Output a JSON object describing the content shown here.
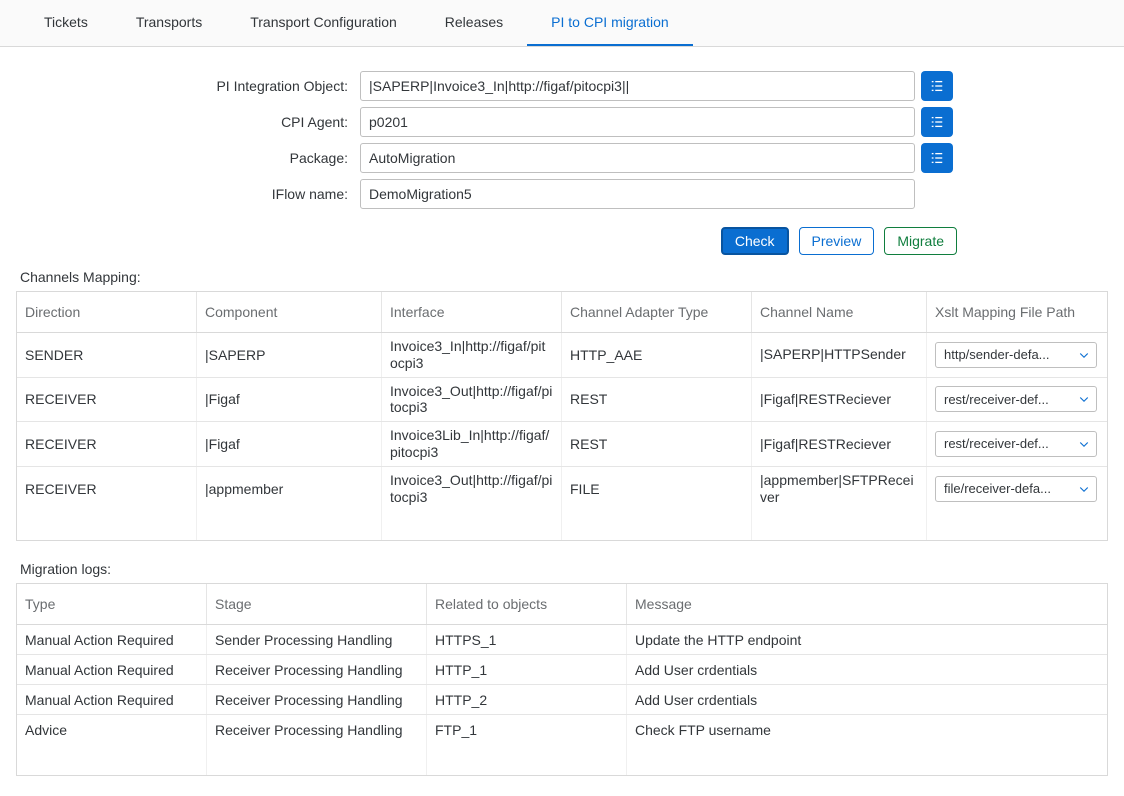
{
  "colors": {
    "primary": "#0a6ed1",
    "primary_border": "#0854a0",
    "green": "#107e3e",
    "text": "#32363a",
    "muted": "#6a6d70",
    "border": "#d9d9d9"
  },
  "tabs": [
    {
      "label": "Tickets",
      "active": false
    },
    {
      "label": "Transports",
      "active": false
    },
    {
      "label": "Transport Configuration",
      "active": false
    },
    {
      "label": "Releases",
      "active": false
    },
    {
      "label": "PI to CPI migration",
      "active": true
    }
  ],
  "form": {
    "pi_object": {
      "label": "PI Integration Object:",
      "value": "|SAPERP|Invoice3_In|http://figaf/pitocpi3||",
      "has_helper": true
    },
    "cpi_agent": {
      "label": "CPI Agent:",
      "value": "p0201",
      "has_helper": true
    },
    "package": {
      "label": "Package:",
      "value": "AutoMigration",
      "has_helper": true
    },
    "iflow": {
      "label": "IFlow name:",
      "value": "DemoMigration5",
      "has_helper": false
    }
  },
  "actions": {
    "check": "Check",
    "preview": "Preview",
    "migrate": "Migrate"
  },
  "channels": {
    "title": "Channels Mapping:",
    "headers": [
      "Direction",
      "Component",
      "Interface",
      "Channel Adapter Type",
      "Channel Name",
      "Xslt Mapping File Path"
    ],
    "rows": [
      {
        "direction": "SENDER",
        "component": "|SAPERP",
        "interface": "Invoice3_In|http://figaf/pitocpi3",
        "adapter": "HTTP_AAE",
        "name": "|SAPERP|HTTPSender",
        "xslt": "http/sender-defa..."
      },
      {
        "direction": "RECEIVER",
        "component": "|Figaf",
        "interface": "Invoice3_Out|http://figaf/pitocpi3",
        "adapter": "REST",
        "name": "|Figaf|RESTReciever",
        "xslt": "rest/receiver-def..."
      },
      {
        "direction": "RECEIVER",
        "component": "|Figaf",
        "interface": "Invoice3Lib_In|http://figaf/pitocpi3",
        "adapter": "REST",
        "name": "|Figaf|RESTReciever",
        "xslt": "rest/receiver-def..."
      },
      {
        "direction": "RECEIVER",
        "component": "|appmember",
        "interface": "Invoice3_Out|http://figaf/pitocpi3",
        "adapter": "FILE",
        "name": "|appmember|SFTPReceiver",
        "xslt": "file/receiver-defa..."
      }
    ]
  },
  "logs": {
    "title": "Migration logs:",
    "headers": [
      "Type",
      "Stage",
      "Related to objects",
      "Message"
    ],
    "rows": [
      {
        "type": "Manual Action Required",
        "stage": "Sender Processing Handling",
        "object": "HTTPS_1",
        "message": "Update the HTTP endpoint"
      },
      {
        "type": "Manual Action Required",
        "stage": "Receiver Processing Handling",
        "object": "HTTP_1",
        "message": "Add User crdentials"
      },
      {
        "type": "Manual Action Required",
        "stage": "Receiver Processing Handling",
        "object": "HTTP_2",
        "message": "Add User crdentials"
      },
      {
        "type": "Advice",
        "stage": "Receiver Processing Handling",
        "object": "FTP_1",
        "message": "Check FTP username"
      }
    ]
  }
}
